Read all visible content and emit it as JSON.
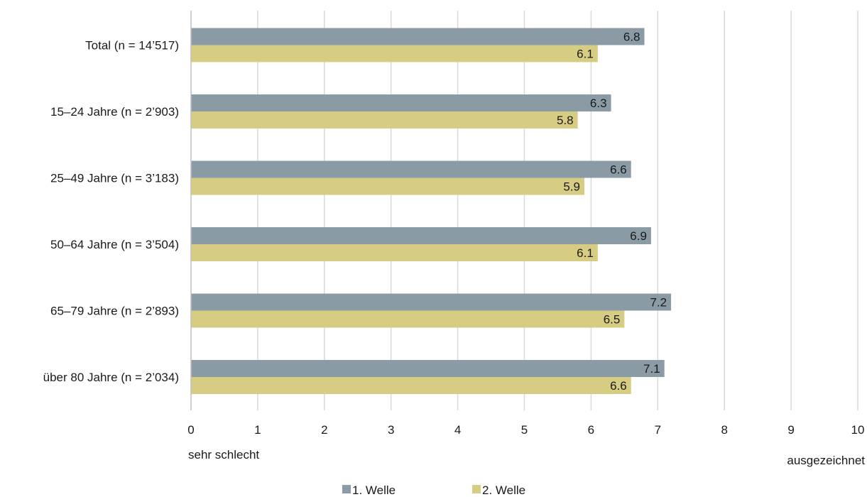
{
  "chart_data": {
    "type": "bar",
    "orientation": "horizontal",
    "categories": [
      "Total (n = 14’517)",
      "15–24 Jahre (n = 2’903)",
      "25–49 Jahre (n = 3’183)",
      "50–64 Jahre (n = 3’504)",
      "65–79 Jahre (n = 2’893)",
      "über 80 Jahre (n = 2’034)"
    ],
    "series": [
      {
        "name": "1. Welle",
        "color": "#8a9ba6",
        "values": [
          6.8,
          6.3,
          6.6,
          6.9,
          7.2,
          7.1
        ],
        "labels": [
          "6.8",
          "6.3",
          "6.6",
          "6.9",
          "7.2",
          "7.1"
        ]
      },
      {
        "name": "2. Welle",
        "color": "#d6cc82",
        "values": [
          6.1,
          5.8,
          5.9,
          6.1,
          6.5,
          6.6
        ],
        "labels": [
          "6.1",
          "5.8",
          "5.9",
          "6.1",
          "6.5",
          "6.6"
        ]
      }
    ],
    "xlim": [
      0,
      10
    ],
    "xticks": [
      "0",
      "1",
      "2",
      "3",
      "4",
      "5",
      "6",
      "7",
      "8",
      "9",
      "10"
    ],
    "scale_low_label": "sehr schlecht",
    "scale_high_label": "ausgezeichnet",
    "grid": "vertical",
    "legend_position": "bottom"
  }
}
